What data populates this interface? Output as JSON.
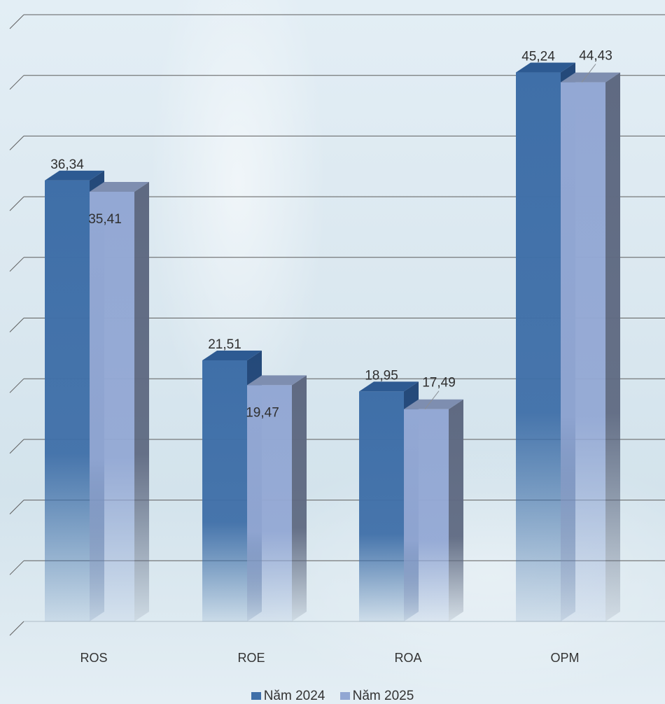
{
  "chart_data": {
    "type": "bar",
    "categories": [
      "ROS",
      "ROE",
      "ROA",
      "OPM"
    ],
    "series": [
      {
        "name": "Năm 2024",
        "values": [
          36.34,
          21.51,
          18.95,
          45.24
        ],
        "labels": [
          "36,34",
          "21,51",
          "18,95",
          "45,24"
        ],
        "color": "#3f6fa8"
      },
      {
        "name": "Năm 2025",
        "values": [
          35.41,
          19.47,
          17.49,
          44.43
        ],
        "labels": [
          "35,41",
          "19,47",
          "17,49",
          "44,43"
        ],
        "color": "#92a7d3"
      }
    ],
    "ylim": [
      0,
      50
    ],
    "gridlines": 10,
    "grid": true,
    "legend_position": "bottom",
    "style": "3d-column"
  }
}
